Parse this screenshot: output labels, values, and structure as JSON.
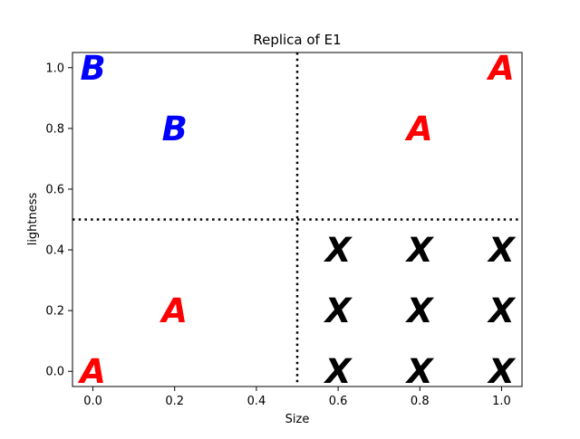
{
  "chart_data": {
    "type": "scatter",
    "title": "Replica of E1",
    "xlabel": "Size",
    "ylabel": "lightness",
    "xlim": [
      -0.05,
      1.05
    ],
    "ylim": [
      -0.05,
      1.05
    ],
    "xticks": [
      "0.0",
      "0.2",
      "0.4",
      "0.6",
      "0.8",
      "1.0"
    ],
    "yticks": [
      "0.0",
      "0.2",
      "0.4",
      "0.6",
      "0.8",
      "1.0"
    ],
    "xtick_values": [
      0.0,
      0.2,
      0.4,
      0.6,
      0.8,
      1.0
    ],
    "ytick_values": [
      0.0,
      0.2,
      0.4,
      0.6,
      0.8,
      1.0
    ],
    "grid": false,
    "reference_lines": [
      {
        "orientation": "vertical",
        "value": 0.5,
        "style": "dotted",
        "color": "#000000"
      },
      {
        "orientation": "horizontal",
        "value": 0.5,
        "style": "dotted",
        "color": "#000000"
      }
    ],
    "points": [
      {
        "x": 0.0,
        "y": 1.0,
        "label": "B",
        "color": "#0000ff"
      },
      {
        "x": 0.2,
        "y": 0.8,
        "label": "B",
        "color": "#0000ff"
      },
      {
        "x": 1.0,
        "y": 1.0,
        "label": "A",
        "color": "#ff0000"
      },
      {
        "x": 0.8,
        "y": 0.8,
        "label": "A",
        "color": "#ff0000"
      },
      {
        "x": 0.2,
        "y": 0.2,
        "label": "A",
        "color": "#ff0000"
      },
      {
        "x": 0.0,
        "y": 0.0,
        "label": "A",
        "color": "#ff0000"
      },
      {
        "x": 0.6,
        "y": 0.4,
        "label": "X",
        "color": "#000000"
      },
      {
        "x": 0.8,
        "y": 0.4,
        "label": "X",
        "color": "#000000"
      },
      {
        "x": 1.0,
        "y": 0.4,
        "label": "X",
        "color": "#000000"
      },
      {
        "x": 0.6,
        "y": 0.2,
        "label": "X",
        "color": "#000000"
      },
      {
        "x": 0.8,
        "y": 0.2,
        "label": "X",
        "color": "#000000"
      },
      {
        "x": 1.0,
        "y": 0.2,
        "label": "X",
        "color": "#000000"
      },
      {
        "x": 0.6,
        "y": 0.0,
        "label": "X",
        "color": "#000000"
      },
      {
        "x": 0.8,
        "y": 0.0,
        "label": "X",
        "color": "#000000"
      },
      {
        "x": 1.0,
        "y": 0.0,
        "label": "X",
        "color": "#000000"
      }
    ]
  }
}
